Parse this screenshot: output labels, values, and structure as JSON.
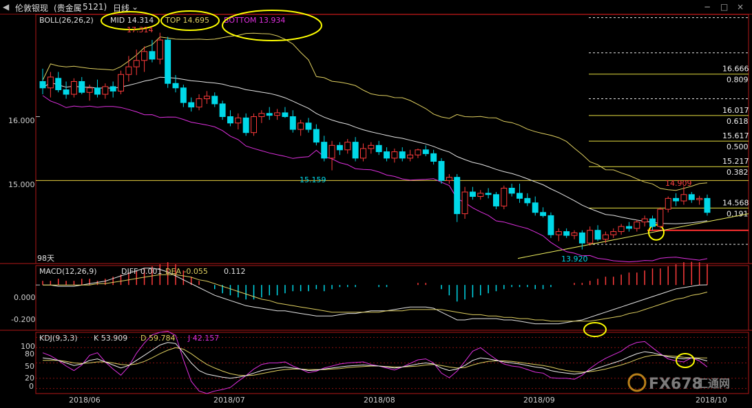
{
  "window": {
    "title": "伦敦银现",
    "subtitle": "(贵金属",
    "code": "5121)",
    "period": "日线",
    "win_buttons": [
      "−",
      "□",
      "×"
    ]
  },
  "boll": {
    "label": "BOLL(26,26,2)",
    "mid_label": "MID 14.314",
    "top_label": "TOP 14.695",
    "bottom_label": "BOTTOM 13.934",
    "high_label": "17.314",
    "low_label_1": "15.159",
    "low_label_2": "13.920",
    "peak_label": "14.909",
    "days_label": "98天"
  },
  "macd": {
    "label": "MACD(12,26,9)",
    "diff_label": "DIFF 0.001",
    "dea_label": "DEA -0.055",
    "hist_label": "0.112"
  },
  "kdj": {
    "label": "KDJ(9,3,3)",
    "k_label": "K 53.909",
    "d_label": "D 59.784",
    "j_label": "J 42.157"
  },
  "fib": [
    {
      "price": "16.666",
      "ratio": "0.809"
    },
    {
      "price": "16.017",
      "ratio": "0.618"
    },
    {
      "price": "15.617",
      "ratio": "0.500"
    },
    {
      "price": "15.217",
      "ratio": "0.382"
    },
    {
      "price": "14.568",
      "ratio": "0.191"
    }
  ],
  "watermark": {
    "text": "FX678",
    "text2": "汇通网"
  },
  "colors": {
    "up": "#ff3b3b",
    "down": "#00d8e8",
    "mid": "#e6e6e6",
    "top": "#e0d060",
    "bottom": "#e030e0",
    "frame": "#b01818",
    "fib": "#e8e040",
    "highlight": "#ffff00",
    "dea": "#e0d060",
    "diff": "#e6e6e6"
  },
  "chart_data": [
    {
      "type": "candlestick",
      "title": "BOLL(26,26,2)",
      "x_labels": [
        "2018/06",
        "2018/07",
        "2018/08",
        "2018/09",
        "2018/10"
      ],
      "y_ticks": [
        "16.000",
        "15.000"
      ],
      "ylim": [
        13.7,
        17.6
      ],
      "values_note": "daily OHLC estimated from chart",
      "ohlc": [
        [
          16.55,
          16.75,
          16.35,
          16.45
        ],
        [
          16.45,
          16.7,
          16.3,
          16.62
        ],
        [
          16.6,
          16.7,
          16.38,
          16.42
        ],
        [
          16.42,
          16.55,
          16.28,
          16.35
        ],
        [
          16.35,
          16.6,
          16.3,
          16.55
        ],
        [
          16.55,
          16.62,
          16.35,
          16.38
        ],
        [
          16.38,
          16.5,
          16.25,
          16.45
        ],
        [
          16.45,
          16.58,
          16.3,
          16.35
        ],
        [
          16.35,
          16.52,
          16.28,
          16.47
        ],
        [
          16.47,
          16.55,
          16.3,
          16.4
        ],
        [
          16.4,
          16.72,
          16.35,
          16.66
        ],
        [
          16.66,
          16.95,
          16.55,
          16.78
        ],
        [
          16.78,
          17.05,
          16.65,
          16.88
        ],
        [
          16.88,
          17.1,
          16.7,
          17.02
        ],
        [
          17.02,
          17.2,
          16.85,
          16.9
        ],
        [
          16.9,
          17.314,
          16.82,
          17.2
        ],
        [
          17.2,
          17.25,
          16.45,
          16.52
        ],
        [
          16.52,
          16.65,
          16.38,
          16.45
        ],
        [
          16.45,
          16.5,
          16.15,
          16.22
        ],
        [
          16.22,
          16.3,
          16.08,
          16.15
        ],
        [
          16.15,
          16.35,
          16.1,
          16.28
        ],
        [
          16.28,
          16.4,
          16.2,
          16.32
        ],
        [
          16.32,
          16.38,
          16.15,
          16.2
        ],
        [
          16.2,
          16.25,
          15.95,
          16.0
        ],
        [
          16.0,
          16.1,
          15.85,
          15.9
        ],
        [
          15.9,
          16.05,
          15.8,
          15.98
        ],
        [
          15.98,
          16.05,
          15.7,
          15.75
        ],
        [
          15.75,
          16.05,
          15.7,
          16.0
        ],
        [
          16.0,
          16.1,
          15.9,
          16.05
        ],
        [
          16.05,
          16.15,
          15.95,
          16.02
        ],
        [
          16.02,
          16.12,
          15.95,
          16.06
        ],
        [
          16.06,
          16.15,
          15.98,
          16.0
        ],
        [
          16.0,
          16.1,
          15.75,
          15.8
        ],
        [
          15.8,
          15.95,
          15.7,
          15.9
        ],
        [
          15.9,
          15.98,
          15.75,
          15.8
        ],
        [
          15.8,
          15.88,
          15.55,
          15.6
        ],
        [
          15.6,
          15.7,
          15.3,
          15.35
        ],
        [
          15.35,
          15.62,
          15.159,
          15.55
        ],
        [
          15.55,
          15.6,
          15.4,
          15.48
        ],
        [
          15.48,
          15.65,
          15.42,
          15.6
        ],
        [
          15.6,
          15.68,
          15.3,
          15.35
        ],
        [
          15.35,
          15.58,
          15.3,
          15.5
        ],
        [
          15.5,
          15.6,
          15.42,
          15.55
        ],
        [
          15.55,
          15.62,
          15.4,
          15.45
        ],
        [
          15.45,
          15.52,
          15.3,
          15.35
        ],
        [
          15.35,
          15.5,
          15.28,
          15.45
        ],
        [
          15.45,
          15.52,
          15.3,
          15.35
        ],
        [
          15.35,
          15.48,
          15.3,
          15.4
        ],
        [
          15.4,
          15.5,
          15.35,
          15.48
        ],
        [
          15.48,
          15.55,
          15.38,
          15.42
        ],
        [
          15.42,
          15.48,
          15.25,
          15.3
        ],
        [
          15.3,
          15.35,
          14.95,
          15.0
        ],
        [
          15.0,
          15.1,
          14.95,
          15.05
        ],
        [
          15.05,
          15.1,
          14.35,
          14.48
        ],
        [
          14.48,
          14.9,
          14.4,
          14.82
        ],
        [
          14.82,
          14.9,
          14.7,
          14.75
        ],
        [
          14.75,
          14.85,
          14.7,
          14.8
        ],
        [
          14.8,
          14.88,
          14.72,
          14.78
        ],
        [
          14.78,
          14.82,
          14.55,
          14.6
        ],
        [
          14.6,
          14.92,
          14.55,
          14.88
        ],
        [
          14.88,
          14.95,
          14.75,
          14.8
        ],
        [
          14.8,
          14.95,
          14.65,
          14.72
        ],
        [
          14.72,
          14.8,
          14.6,
          14.65
        ],
        [
          14.65,
          14.75,
          14.45,
          14.5
        ],
        [
          14.5,
          14.58,
          14.42,
          14.45
        ],
        [
          14.45,
          14.5,
          14.1,
          14.15
        ],
        [
          14.15,
          14.25,
          14.05,
          14.2
        ],
        [
          14.2,
          14.25,
          14.1,
          14.14
        ],
        [
          14.14,
          14.22,
          14.08,
          14.18
        ],
        [
          14.18,
          14.22,
          13.92,
          14.02
        ],
        [
          14.02,
          14.28,
          13.98,
          14.22
        ],
        [
          14.22,
          14.3,
          14.05,
          14.08
        ],
        [
          14.08,
          14.2,
          14.02,
          14.15
        ],
        [
          14.15,
          14.25,
          14.1,
          14.2
        ],
        [
          14.2,
          14.32,
          14.15,
          14.28
        ],
        [
          14.28,
          14.35,
          14.2,
          14.25
        ],
        [
          14.25,
          14.38,
          14.2,
          14.35
        ],
        [
          14.35,
          14.45,
          14.28,
          14.4
        ],
        [
          14.4,
          14.45,
          14.22,
          14.28
        ],
        [
          14.28,
          14.58,
          14.25,
          14.55
        ],
        [
          14.55,
          14.75,
          14.5,
          14.72
        ],
        [
          14.72,
          14.8,
          14.6,
          14.68
        ],
        [
          14.68,
          14.909,
          14.62,
          14.78
        ],
        [
          14.78,
          14.82,
          14.65,
          14.7
        ],
        [
          14.7,
          14.76,
          14.62,
          14.72
        ],
        [
          14.72,
          14.78,
          14.45,
          14.5
        ]
      ]
    },
    {
      "type": "bar",
      "title": "MACD(12,26,9)",
      "y_ticks": [
        "0.000",
        "-0.200"
      ],
      "ylim": [
        -0.35,
        0.15
      ],
      "series": [
        {
          "name": "MACD",
          "values": [
            0.02,
            0.02,
            0.03,
            0.02,
            0.02,
            0.03,
            0.03,
            0.02,
            0.03,
            0.04,
            0.05,
            0.06,
            0.07,
            0.08,
            0.09,
            0.1,
            0.11,
            0.1,
            0.07,
            0.04,
            0.02,
            0.0,
            -0.02,
            -0.04,
            -0.05,
            -0.06,
            -0.07,
            -0.07,
            -0.06,
            -0.05,
            -0.05,
            -0.04,
            -0.03,
            -0.03,
            -0.03,
            -0.02,
            -0.03,
            -0.02,
            -0.01,
            -0.01,
            -0.01,
            0.0,
            0.0,
            -0.01,
            -0.01,
            0.0,
            0.0,
            0.0,
            0.01,
            0.01,
            0.0,
            -0.02,
            -0.05,
            -0.08,
            -0.07,
            -0.06,
            -0.05,
            -0.04,
            -0.03,
            -0.02,
            -0.01,
            -0.01,
            -0.01,
            -0.02,
            -0.02,
            -0.01,
            0.0,
            0.0,
            0.01,
            0.01,
            0.02,
            0.03,
            0.04,
            0.04,
            0.05,
            0.06,
            0.06,
            0.07,
            0.08,
            0.08,
            0.09,
            0.1,
            0.11,
            0.112,
            0.11,
            0.1
          ]
        },
        {
          "name": "DIFF",
          "values": [
            0.0,
            0.0,
            -0.01,
            -0.01,
            -0.01,
            0.0,
            0.01,
            0.02,
            0.03,
            0.05,
            0.07,
            0.09,
            0.11,
            0.13,
            0.13,
            0.12,
            0.1,
            0.07,
            0.04,
            0.01,
            -0.02,
            -0.05,
            -0.08,
            -0.1,
            -0.12,
            -0.14,
            -0.16,
            -0.17,
            -0.18,
            -0.19,
            -0.2,
            -0.2,
            -0.21,
            -0.22,
            -0.23,
            -0.24,
            -0.24,
            -0.24,
            -0.23,
            -0.22,
            -0.22,
            -0.21,
            -0.2,
            -0.2,
            -0.2,
            -0.19,
            -0.18,
            -0.17,
            -0.17,
            -0.17,
            -0.18,
            -0.21,
            -0.24,
            -0.27,
            -0.27,
            -0.26,
            -0.26,
            -0.26,
            -0.26,
            -0.27,
            -0.27,
            -0.28,
            -0.29,
            -0.3,
            -0.3,
            -0.3,
            -0.3,
            -0.29,
            -0.28,
            -0.27,
            -0.25,
            -0.23,
            -0.21,
            -0.19,
            -0.17,
            -0.15,
            -0.13,
            -0.11,
            -0.09,
            -0.07,
            -0.05,
            -0.03,
            -0.02,
            -0.01,
            0.0,
            0.001
          ]
        },
        {
          "name": "DEA",
          "values": [
            0.0,
            0.0,
            0.0,
            0.0,
            0.0,
            0.0,
            0.0,
            0.01,
            0.01,
            0.02,
            0.03,
            0.04,
            0.05,
            0.06,
            0.07,
            0.08,
            0.08,
            0.08,
            0.07,
            0.06,
            0.04,
            0.03,
            0.01,
            -0.01,
            -0.03,
            -0.05,
            -0.07,
            -0.09,
            -0.11,
            -0.12,
            -0.14,
            -0.15,
            -0.16,
            -0.17,
            -0.18,
            -0.19,
            -0.2,
            -0.21,
            -0.21,
            -0.21,
            -0.21,
            -0.21,
            -0.21,
            -0.21,
            -0.2,
            -0.2,
            -0.2,
            -0.19,
            -0.19,
            -0.19,
            -0.19,
            -0.19,
            -0.2,
            -0.21,
            -0.22,
            -0.23,
            -0.23,
            -0.24,
            -0.24,
            -0.25,
            -0.25,
            -0.26,
            -0.26,
            -0.27,
            -0.27,
            -0.28,
            -0.28,
            -0.28,
            -0.28,
            -0.28,
            -0.28,
            -0.27,
            -0.26,
            -0.25,
            -0.24,
            -0.22,
            -0.21,
            -0.19,
            -0.17,
            -0.15,
            -0.13,
            -0.11,
            -0.1,
            -0.08,
            -0.07,
            -0.055
          ]
        }
      ]
    },
    {
      "type": "line",
      "title": "KDJ(9,3,3)",
      "y_ticks": [
        "100",
        "80",
        "50",
        "20",
        "0"
      ],
      "ylim": [
        -10,
        110
      ],
      "series": [
        {
          "name": "K",
          "values": [
            60,
            58,
            55,
            50,
            45,
            48,
            55,
            58,
            52,
            46,
            40,
            45,
            55,
            65,
            75,
            85,
            90,
            88,
            70,
            50,
            35,
            28,
            25,
            22,
            20,
            22,
            25,
            30,
            35,
            38,
            40,
            42,
            40,
            38,
            35,
            36,
            38,
            40,
            42,
            44,
            45,
            46,
            45,
            44,
            42,
            40,
            42,
            45,
            48,
            50,
            48,
            40,
            35,
            38,
            45,
            55,
            60,
            58,
            55,
            52,
            50,
            48,
            45,
            42,
            40,
            35,
            32,
            30,
            28,
            30,
            35,
            40,
            45,
            50,
            55,
            62,
            68,
            72,
            70,
            66,
            62,
            60,
            58,
            60,
            58,
            53.909
          ]
        },
        {
          "name": "D",
          "values": [
            55,
            55,
            55,
            53,
            50,
            49,
            50,
            52,
            52,
            50,
            47,
            46,
            48,
            53,
            60,
            68,
            75,
            80,
            77,
            68,
            57,
            47,
            40,
            34,
            29,
            26,
            25,
            26,
            29,
            32,
            35,
            37,
            38,
            38,
            37,
            37,
            37,
            38,
            39,
            41,
            42,
            43,
            44,
            44,
            43,
            42,
            42,
            43,
            44,
            46,
            47,
            45,
            42,
            40,
            41,
            46,
            50,
            53,
            54,
            54,
            53,
            51,
            49,
            47,
            45,
            42,
            38,
            35,
            33,
            32,
            33,
            35,
            38,
            42,
            46,
            51,
            57,
            62,
            65,
            65,
            64,
            63,
            61,
            60,
            60,
            59.784
          ]
        },
        {
          "name": "J",
          "values": [
            70,
            64,
            55,
            44,
            35,
            46,
            65,
            70,
            52,
            38,
            26,
            43,
            69,
            89,
            105,
            110,
            112,
            104,
            56,
            14,
            -5,
            -10,
            -5,
            -2,
            2,
            14,
            25,
            38,
            47,
            50,
            50,
            52,
            44,
            38,
            31,
            34,
            40,
            44,
            48,
            50,
            51,
            52,
            47,
            44,
            40,
            36,
            42,
            49,
            56,
            58,
            50,
            30,
            21,
            34,
            53,
            73,
            80,
            68,
            57,
            48,
            44,
            42,
            37,
            32,
            30,
            21,
            20,
            20,
            18,
            26,
            39,
            50,
            59,
            66,
            73,
            84,
            90,
            92,
            80,
            68,
            58,
            54,
            52,
            60,
            54,
            42.157
          ]
        }
      ]
    }
  ],
  "x_labels": [
    "2018/06",
    "2018/07",
    "2018/08",
    "2018/09",
    "2018/10"
  ]
}
